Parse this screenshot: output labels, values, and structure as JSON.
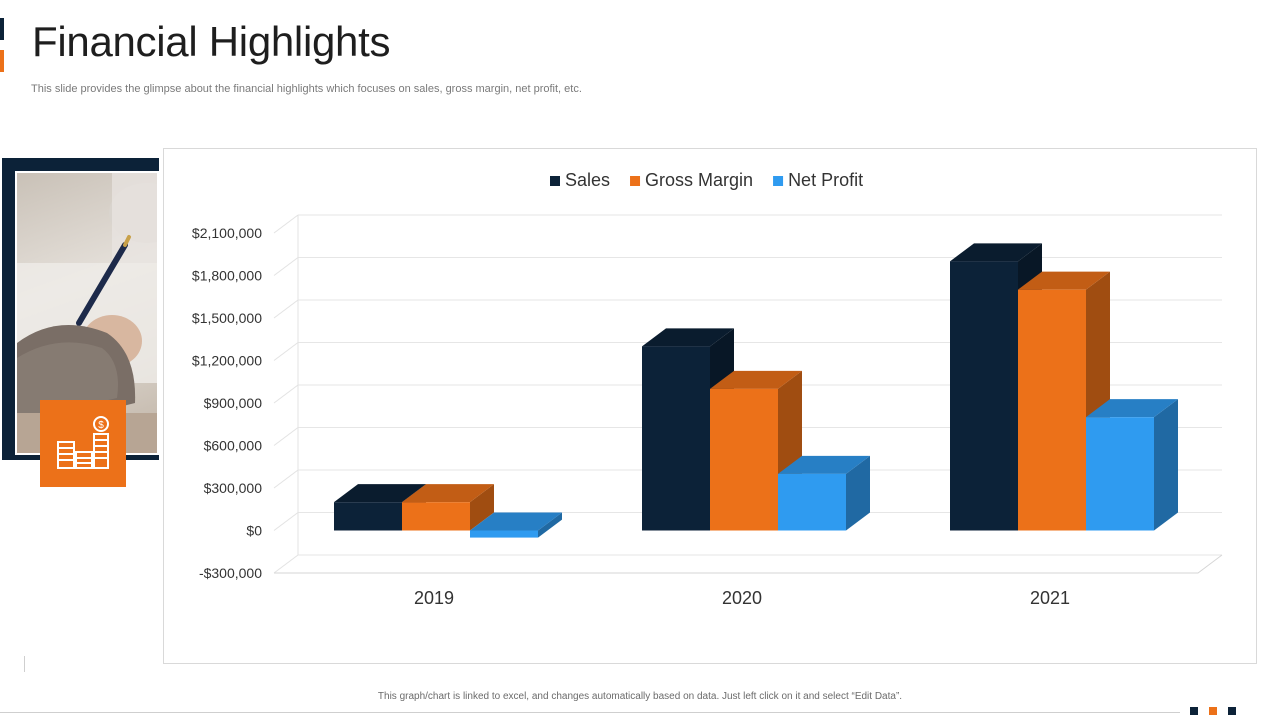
{
  "header": {
    "title": "Financial Highlights",
    "subtitle": "This slide provides the glimpse about the financial highlights which focuses on sales, gross margin, net profit, etc."
  },
  "footer": {
    "note": "This graph/chart is linked to excel, and changes automatically based on data. Just left click on it and select “Edit Data”."
  },
  "colors": {
    "navy": "#0c2238",
    "orange": "#ec7119",
    "blue": "#2f9bf0"
  },
  "icons": {
    "decor_icon": "growth-coins-icon",
    "photo": "writing-hand-photo"
  },
  "chart_data": {
    "type": "bar",
    "title": "",
    "xlabel": "",
    "ylabel": "",
    "categories": [
      "2019",
      "2020",
      "2021"
    ],
    "series": [
      {
        "name": "Sales",
        "color": "#0c2238",
        "values": [
          200000,
          1300000,
          1900000
        ]
      },
      {
        "name": "Gross Margin",
        "color": "#ec7119",
        "values": [
          200000,
          1000000,
          1700000
        ]
      },
      {
        "name": "Net Profit",
        "color": "#2f9bf0",
        "values": [
          -50000,
          400000,
          800000
        ]
      }
    ],
    "ylim": [
      -300000,
      2100000
    ],
    "yticks": [
      -300000,
      0,
      300000,
      600000,
      900000,
      1200000,
      1500000,
      1800000,
      2100000
    ],
    "ytick_labels": [
      "-$300,000",
      "$0",
      "$300,000",
      "$600,000",
      "$900,000",
      "$1,200,000",
      "$1,500,000",
      "$1,800,000",
      "$2,100,000"
    ],
    "legend": "top-center",
    "grid": true
  }
}
